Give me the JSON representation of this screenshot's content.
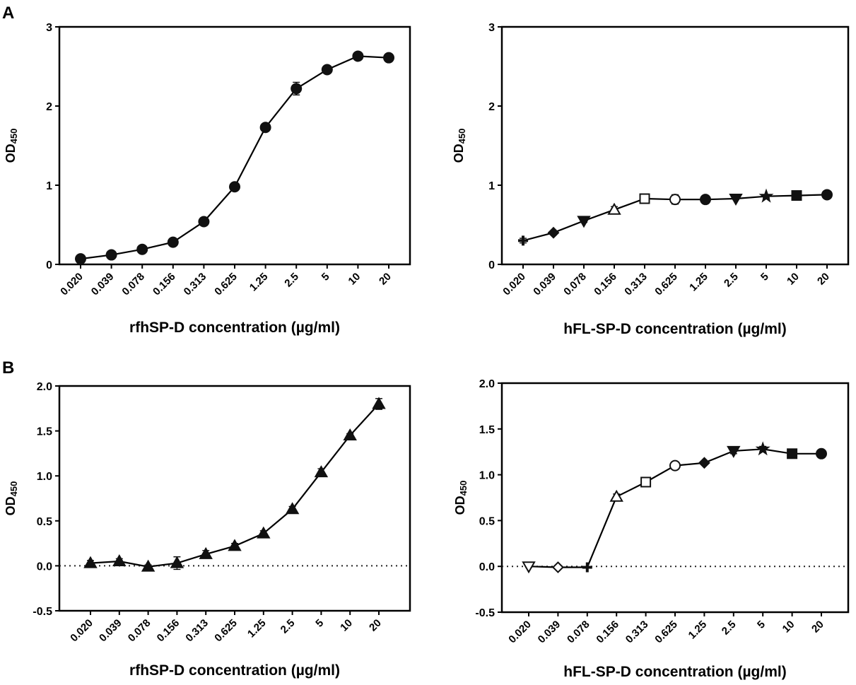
{
  "panels": {
    "a": "A",
    "b": "B"
  },
  "chart_data": [
    {
      "type": "line",
      "panel": "A",
      "position": "top-left",
      "title": "",
      "xlabel": "rfhSP-D concentration (µg/ml)",
      "ylabel": "OD",
      "ylabel_sub": "450",
      "categories": [
        "0.020",
        "0.039",
        "0.078",
        "0.156",
        "0.313",
        "0.625",
        "1.25",
        "2.5",
        "5",
        "10",
        "20"
      ],
      "series": [
        {
          "name": "rfhSP-D",
          "values": [
            0.07,
            0.12,
            0.19,
            0.28,
            0.54,
            0.98,
            1.73,
            2.22,
            2.46,
            2.63,
            2.61
          ],
          "errors": [
            0.01,
            0.01,
            0.01,
            0.01,
            0.05,
            0.02,
            0.02,
            0.08,
            0.02,
            0.02,
            0.02
          ],
          "markers": [
            "circle",
            "circle",
            "circle",
            "circle",
            "circle",
            "circle",
            "circle",
            "circle",
            "circle",
            "circle",
            "circle"
          ]
        }
      ],
      "ylim": [
        0,
        3
      ],
      "yticks": [
        0,
        1,
        2,
        3
      ],
      "ytick_labels": [
        "0",
        "1",
        "2",
        "3"
      ],
      "zero_line": false
    },
    {
      "type": "line",
      "panel": "A",
      "position": "top-right",
      "title": "",
      "xlabel": "hFL-SP-D concentration (µg/ml)",
      "ylabel": "OD",
      "ylabel_sub": "450",
      "categories": [
        "0.020",
        "0.039",
        "0.078",
        "0.156",
        "0.313",
        "0.625",
        "1.25",
        "2.5",
        "5",
        "10",
        "20"
      ],
      "series": [
        {
          "name": "hFL-SP-D",
          "values": [
            0.3,
            0.4,
            0.55,
            0.69,
            0.83,
            0.82,
            0.82,
            0.83,
            0.86,
            0.87,
            0.88
          ],
          "errors": [
            0.03,
            0.02,
            0.02,
            0.04,
            0.02,
            0.06,
            0.04,
            0.01,
            0.02,
            0.01,
            0.04
          ],
          "markers": [
            "cross",
            "diamond",
            "triangle-down",
            "triangle-open",
            "square-open",
            "circle-open",
            "circle",
            "triangle-down",
            "star",
            "square",
            "circle"
          ]
        }
      ],
      "ylim": [
        0,
        3
      ],
      "yticks": [
        0,
        1,
        2,
        3
      ],
      "ytick_labels": [
        "0",
        "1",
        "2",
        "3"
      ],
      "zero_line": false
    },
    {
      "type": "line",
      "panel": "B",
      "position": "bottom-left",
      "title": "",
      "xlabel": "rfhSP-D concentration (µg/ml)",
      "ylabel": "OD",
      "ylabel_sub": "450",
      "categories": [
        "0.020",
        "0.039",
        "0.078",
        "0.156",
        "0.313",
        "0.625",
        "1.25",
        "2.5",
        "5",
        "10",
        "20"
      ],
      "series": [
        {
          "name": "rfhSP-D",
          "values": [
            0.03,
            0.05,
            -0.01,
            0.03,
            0.13,
            0.22,
            0.36,
            0.63,
            1.04,
            1.45,
            1.8
          ],
          "errors": [
            0.03,
            0.03,
            0.02,
            0.07,
            0.04,
            0.03,
            0.03,
            0.03,
            0.04,
            0.02,
            0.06
          ],
          "markers": [
            "triangle",
            "triangle",
            "triangle",
            "triangle",
            "triangle",
            "triangle",
            "triangle",
            "triangle",
            "triangle",
            "triangle",
            "triangle"
          ]
        }
      ],
      "ylim": [
        -0.5,
        2.0
      ],
      "yticks": [
        -0.5,
        0,
        0.5,
        1,
        1.5,
        2
      ],
      "ytick_labels": [
        "-0.5",
        "0.0",
        "0.5",
        "1.0",
        "1.5",
        "2.0"
      ],
      "zero_line": true
    },
    {
      "type": "line",
      "panel": "B",
      "position": "bottom-right",
      "title": "",
      "xlabel": "hFL-SP-D concentration (µg/ml)",
      "ylabel": "OD",
      "ylabel_sub": "450",
      "categories": [
        "0.020",
        "0.039",
        "0.078",
        "0.156",
        "0.313",
        "0.625",
        "1.25",
        "2.5",
        "5",
        "10",
        "20"
      ],
      "series": [
        {
          "name": "hFL-SP-D",
          "values": [
            0.0,
            -0.01,
            -0.01,
            0.76,
            0.92,
            1.1,
            1.13,
            1.26,
            1.28,
            1.23,
            1.23
          ],
          "errors": [
            0.01,
            0.01,
            0.01,
            0.03,
            0.03,
            0.03,
            0.02,
            0.03,
            0.03,
            0.03,
            0.04
          ],
          "markers": [
            "triangle-down-open",
            "diamond-open",
            "cross",
            "triangle-open",
            "square-open",
            "circle-open",
            "diamond",
            "triangle-down",
            "star",
            "square",
            "circle"
          ]
        }
      ],
      "ylim": [
        -0.5,
        2.0
      ],
      "yticks": [
        -0.5,
        0,
        0.5,
        1,
        1.5,
        2
      ],
      "ytick_labels": [
        "-0.5",
        "0.0",
        "0.5",
        "1.0",
        "1.5",
        "2.0"
      ],
      "zero_line": true
    }
  ]
}
